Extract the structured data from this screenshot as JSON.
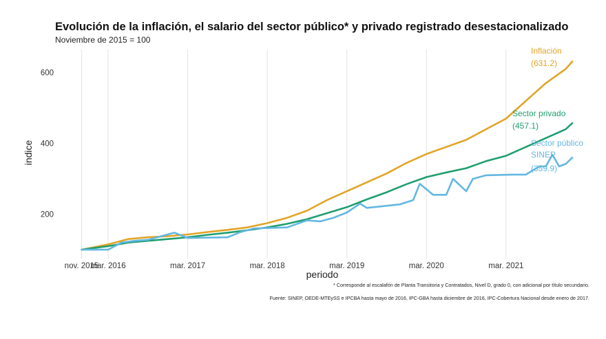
{
  "chart_data": {
    "type": "line",
    "title": "Evolución de la inflación, el salario del sector público* y privado registrado desestacionalizado",
    "subtitle": "Noviembre de 2015 = 100",
    "xlabel": "periodo",
    "ylabel": "indice",
    "x_ticks": [
      "nov. 2015",
      "mar. 2016",
      "mar. 2017",
      "mar. 2018",
      "mar. 2019",
      "mar. 2020",
      "mar. 2021"
    ],
    "y_ticks": [
      200,
      400,
      600
    ],
    "ylim": [
      75,
      665
    ],
    "xlim": [
      "2015-07",
      "2022-04"
    ],
    "grid": "vertical lines at x ticks",
    "legend": "none; direct labels at line ends",
    "series": [
      {
        "name": "Inflación",
        "end_label": "(631.2)",
        "color": "#E0A526",
        "points": [
          [
            "2015-11",
            100
          ],
          [
            "2016-03",
            115
          ],
          [
            "2016-06",
            130
          ],
          [
            "2016-09",
            135
          ],
          [
            "2016-12",
            138
          ],
          [
            "2017-03",
            143
          ],
          [
            "2017-06",
            150
          ],
          [
            "2017-09",
            156
          ],
          [
            "2017-12",
            163
          ],
          [
            "2018-03",
            175
          ],
          [
            "2018-06",
            190
          ],
          [
            "2018-09",
            210
          ],
          [
            "2018-12",
            240
          ],
          [
            "2019-03",
            265
          ],
          [
            "2019-06",
            290
          ],
          [
            "2019-09",
            315
          ],
          [
            "2019-12",
            345
          ],
          [
            "2020-03",
            370
          ],
          [
            "2020-06",
            390
          ],
          [
            "2020-09",
            410
          ],
          [
            "2020-12",
            440
          ],
          [
            "2021-03",
            470
          ],
          [
            "2021-06",
            520
          ],
          [
            "2021-09",
            570
          ],
          [
            "2021-12",
            610
          ],
          [
            "2022-01",
            631.2
          ]
        ]
      },
      {
        "name": "Sector privado",
        "end_label": "(457.1)",
        "color": "#1F9E6E",
        "points": [
          [
            "2015-11",
            100
          ],
          [
            "2016-03",
            110
          ],
          [
            "2016-06",
            120
          ],
          [
            "2016-09",
            125
          ],
          [
            "2016-12",
            130
          ],
          [
            "2017-03",
            135
          ],
          [
            "2017-06",
            142
          ],
          [
            "2017-09",
            148
          ],
          [
            "2017-12",
            155
          ],
          [
            "2018-03",
            163
          ],
          [
            "2018-06",
            173
          ],
          [
            "2018-09",
            186
          ],
          [
            "2018-12",
            203
          ],
          [
            "2019-03",
            220
          ],
          [
            "2019-06",
            242
          ],
          [
            "2019-09",
            262
          ],
          [
            "2019-12",
            285
          ],
          [
            "2020-03",
            305
          ],
          [
            "2020-06",
            318
          ],
          [
            "2020-09",
            330
          ],
          [
            "2020-12",
            350
          ],
          [
            "2021-03",
            365
          ],
          [
            "2021-06",
            390
          ],
          [
            "2021-09",
            415
          ],
          [
            "2021-12",
            440
          ],
          [
            "2022-01",
            457.1
          ]
        ]
      },
      {
        "name": "Sector público SINEP",
        "name_lines": [
          "Sector público",
          "SINEP"
        ],
        "end_label": "(359.9)",
        "color": "#62B7E2",
        "points": [
          [
            "2015-11",
            100
          ],
          [
            "2016-03",
            100
          ],
          [
            "2016-05",
            120
          ],
          [
            "2016-07",
            125
          ],
          [
            "2016-09",
            128
          ],
          [
            "2017-01",
            148
          ],
          [
            "2017-03",
            133
          ],
          [
            "2017-09",
            135
          ],
          [
            "2017-11",
            150
          ],
          [
            "2018-01",
            160
          ],
          [
            "2018-06",
            163
          ],
          [
            "2018-09",
            183
          ],
          [
            "2018-11",
            180
          ],
          [
            "2019-01",
            190
          ],
          [
            "2019-03",
            205
          ],
          [
            "2019-05",
            230
          ],
          [
            "2019-06",
            218
          ],
          [
            "2019-08",
            222
          ],
          [
            "2019-11",
            228
          ],
          [
            "2020-01",
            240
          ],
          [
            "2020-02",
            286
          ],
          [
            "2020-04",
            255
          ],
          [
            "2020-06",
            255
          ],
          [
            "2020-07",
            300
          ],
          [
            "2020-09",
            265
          ],
          [
            "2020-10",
            300
          ],
          [
            "2020-12",
            310
          ],
          [
            "2021-04",
            312
          ],
          [
            "2021-06",
            312
          ],
          [
            "2021-08",
            335
          ],
          [
            "2021-09",
            335
          ],
          [
            "2021-10",
            368
          ],
          [
            "2021-11",
            335
          ],
          [
            "2021-12",
            342
          ],
          [
            "2022-01",
            359.9
          ]
        ]
      }
    ]
  },
  "footnotes": {
    "note1": "* Corresponde al escalafón de Planta Transitoria y Contratados, Nivel D, grado 0, con adicional por título secundario.",
    "note2": "Fuente: SINEP, OEDE-MTEySS e IPCBA hasta mayo de 2016, IPC-GBA hasta diciembre de 2016, IPC-Cobertura Nacional desde enero de 2017."
  }
}
